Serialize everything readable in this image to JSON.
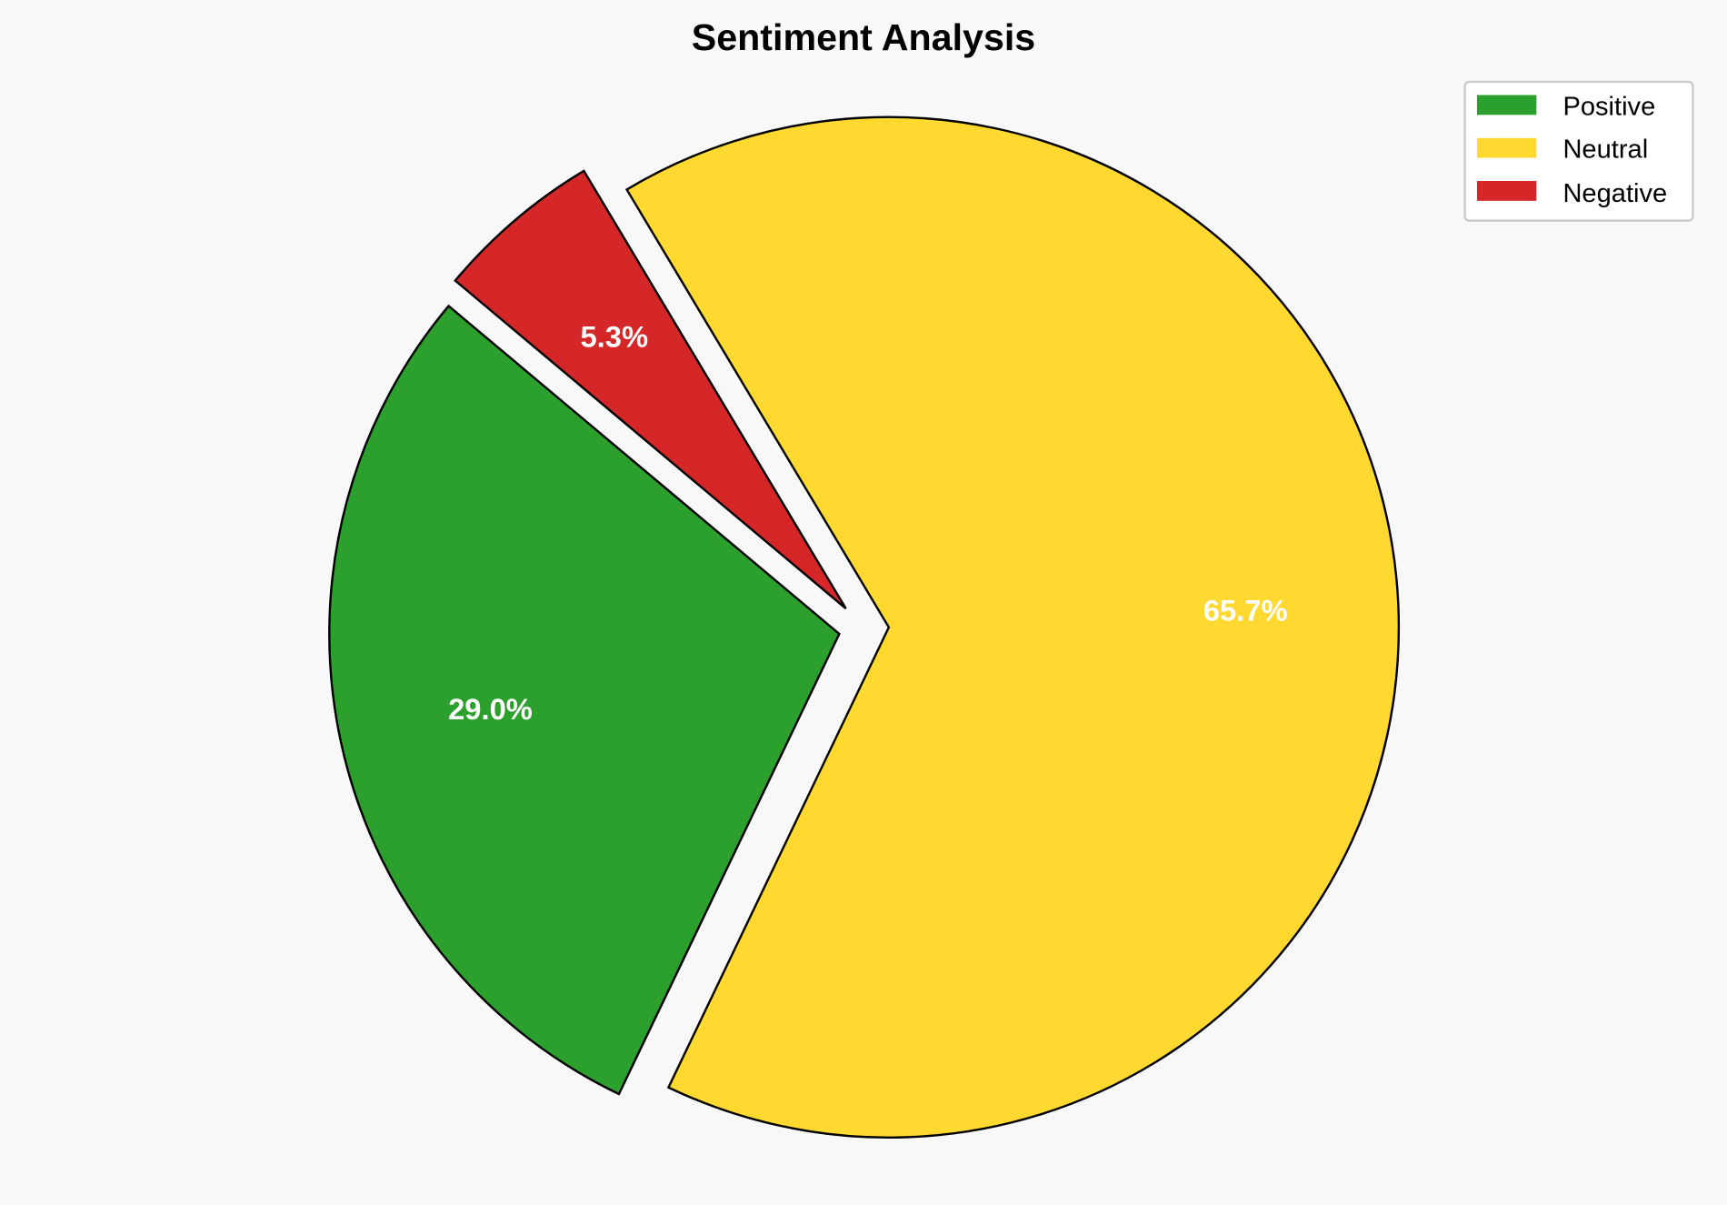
{
  "chart_data": {
    "type": "pie",
    "title": "Sentiment Analysis",
    "categories": [
      "Positive",
      "Neutral",
      "Negative"
    ],
    "values": [
      29.0,
      65.7,
      5.3
    ],
    "labels": [
      "29.0%",
      "65.7%",
      "5.3%"
    ],
    "colors": [
      "#2ca02c",
      "#ffd92f",
      "#d62728"
    ],
    "exploded": [
      "Positive",
      "Neutral",
      "Negative"
    ],
    "legend_position": "top-right"
  }
}
